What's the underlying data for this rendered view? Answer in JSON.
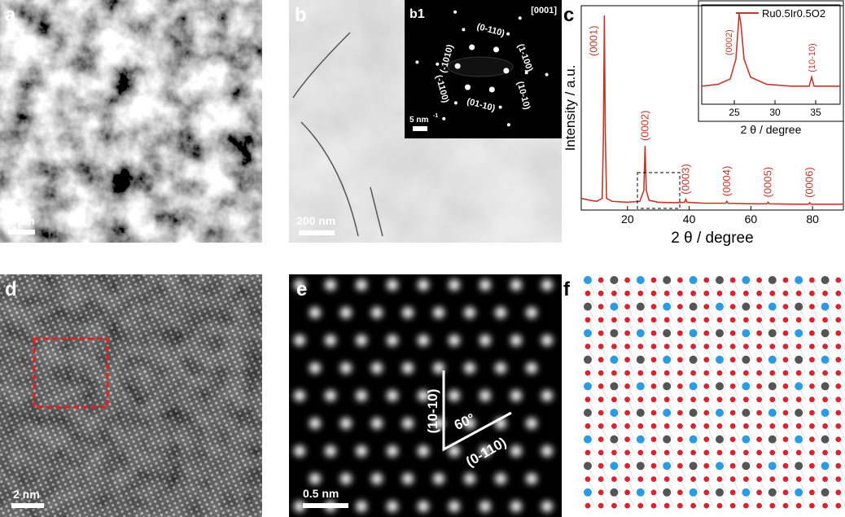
{
  "panels": {
    "a": {
      "label": "a",
      "scale_bar": "2 μm"
    },
    "b": {
      "label": "b",
      "scale_bar": "200 nm",
      "inset": {
        "label": "b1",
        "zone_axis": "[0001]",
        "scale_bar": "5 nm",
        "scale_bar_sup": "-1",
        "spots": [
          "(-1010)",
          "(0-110)",
          "(1-100)",
          "(10-10)",
          "(01-10)",
          "(-1100)"
        ]
      }
    },
    "c": {
      "label": "c"
    },
    "d": {
      "label": "d",
      "scale_bar": "2 nm"
    },
    "e": {
      "label": "e",
      "scale_bar": "0.5 nm",
      "direction_1": "(10-10)",
      "angle": "60°",
      "direction_2": "(0-110)"
    },
    "f": {
      "label": "f"
    }
  },
  "chart_data": [
    {
      "type": "line",
      "xlabel": "2 θ / degree",
      "ylabel": "Intensity / a.u.",
      "x": [
        5,
        8,
        10,
        11.8,
        12.2,
        12.5,
        12.8,
        13.2,
        15,
        20,
        24,
        25.3,
        25.7,
        26.1,
        27,
        30,
        35,
        38.5,
        38.9,
        39.3,
        45,
        51.8,
        52.2,
        52.6,
        60,
        65.2,
        65.6,
        66,
        75,
        78.7,
        79.1,
        79.5,
        90
      ],
      "series": [
        {
          "color": "#c0392b",
          "values": [
            6,
            5,
            4.5,
            6,
            40,
            100,
            40,
            6,
            4.5,
            4,
            4.5,
            10,
            33,
            10,
            5,
            4,
            3.8,
            4,
            5.5,
            4,
            3.5,
            3.5,
            4.5,
            3.5,
            3.2,
            3.2,
            4,
            3.2,
            3,
            3,
            3.8,
            3,
            3
          ]
        }
      ],
      "xlim": [
        5,
        90
      ],
      "ylim": [
        0,
        105
      ],
      "xticks": [
        20,
        40,
        60,
        80
      ],
      "annotations": [
        {
          "text": "(0001)",
          "x": 12.5
        },
        {
          "text": "(0002)",
          "x": 25.7
        },
        {
          "text": "(0003)",
          "x": 38.9
        },
        {
          "text": "(0004)",
          "x": 52.2
        },
        {
          "text": "(0005)",
          "x": 65.6
        },
        {
          "text": "(0006)",
          "x": 79.1
        }
      ]
    },
    {
      "type": "line",
      "xlabel": "2 θ / degree",
      "x": [
        21,
        23,
        24.5,
        25.2,
        25.6,
        25.8,
        26.2,
        27,
        29,
        32,
        34.2,
        34.5,
        34.8,
        36,
        38
      ],
      "series": [
        {
          "name": "Ru0.5Ir0.5O2",
          "color": "#c0392b",
          "values": [
            20,
            22,
            28,
            50,
            100,
            90,
            50,
            30,
            22,
            20,
            20,
            30,
            20,
            20,
            20
          ]
        }
      ],
      "xlim": [
        21,
        38
      ],
      "ylim": [
        0,
        110
      ],
      "xticks": [
        25,
        30,
        35
      ],
      "annotations": [
        {
          "text": "(0002)",
          "x": 25.6
        },
        {
          "text": "(10-10)",
          "x": 34.5
        }
      ]
    }
  ]
}
